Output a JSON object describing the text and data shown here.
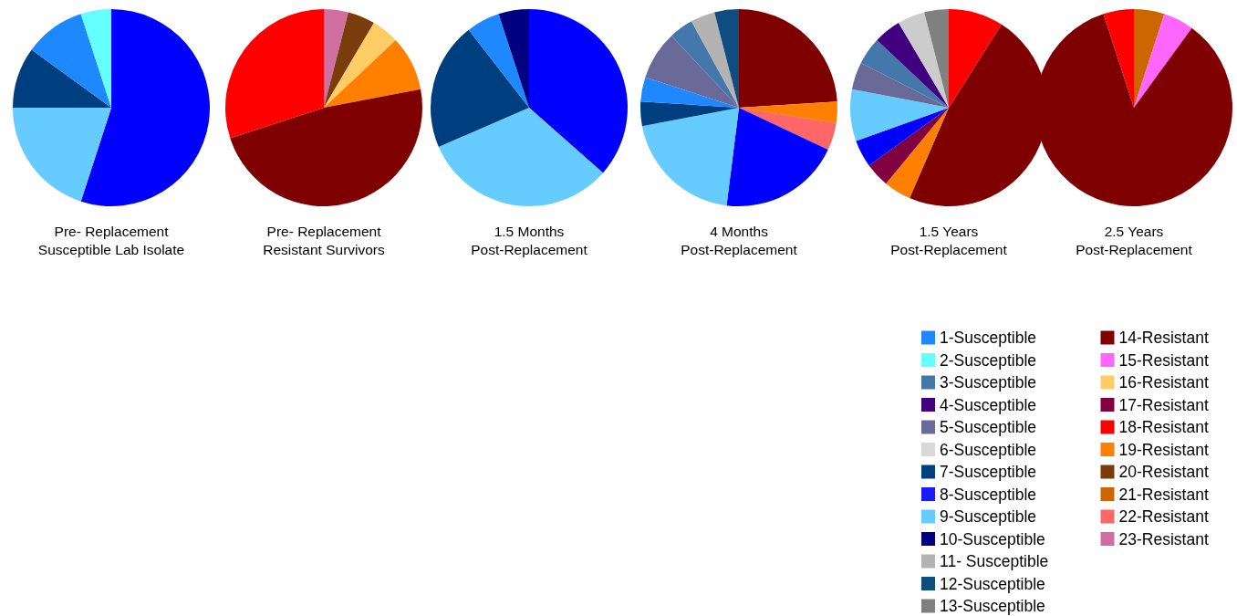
{
  "chart_data": [
    {
      "type": "pie",
      "title": "Pre- Replacement\nSusceptible Lab Isolate",
      "categories": [
        null,
        null,
        null,
        null,
        null
      ],
      "values": [
        55,
        20,
        10,
        10,
        5
      ],
      "colors": [
        "#0000ff",
        "#66ccff",
        "#003f7f",
        "#1e88ff",
        "#66ffff"
      ]
    },
    {
      "type": "pie",
      "title": "Pre- Replacement\nResistant Survivors",
      "categories": [
        null,
        null,
        null,
        null,
        null,
        null
      ],
      "values": [
        4,
        4.5,
        4.5,
        9,
        48,
        30
      ],
      "colors": [
        "#d070a0",
        "#7a3c0a",
        "#ffcc66",
        "#ff8000",
        "#7f0000",
        "#ff0000"
      ]
    },
    {
      "type": "pie",
      "title": "1.5 Months\nPost-Replacement",
      "categories": [
        null,
        null,
        null,
        null,
        null
      ],
      "values": [
        36.5,
        32,
        21,
        5.5,
        5
      ],
      "colors": [
        "#0000ff",
        "#66ccff",
        "#003f7f",
        "#1e88ff",
        "#000080"
      ]
    },
    {
      "type": "pie",
      "title": "4 Months\nPost-Replacement",
      "categories": [
        null,
        null,
        null,
        null,
        null,
        null,
        null,
        null,
        null,
        null,
        null
      ],
      "values": [
        24,
        3.5,
        4.5,
        20,
        20,
        4,
        4,
        8,
        4,
        4,
        4
      ],
      "colors": [
        "#7f0000",
        "#ff8000",
        "#ff6666",
        "#0000ff",
        "#66ccff",
        "#003f7f",
        "#1e88ff",
        "#6a6a99",
        "#4477aa",
        "#b3b3b3",
        "#0f4c80"
      ]
    },
    {
      "type": "pie",
      "title": "1.5 Years\nPost-Replacement",
      "categories": [
        null,
        null,
        null,
        null,
        null,
        null,
        null,
        null,
        null,
        null,
        null
      ],
      "values": [
        9,
        47.5,
        4.5,
        4,
        4.5,
        8.5,
        4.5,
        4.5,
        4.5,
        4.5,
        4
      ],
      "colors": [
        "#ff0000",
        "#7f0000",
        "#ff8000",
        "#800040",
        "#0000ff",
        "#66ccff",
        "#6a6a99",
        "#4477aa",
        "#400080",
        "#cccccc",
        "#808080"
      ]
    },
    {
      "type": "pie",
      "title": "2.5 Years\nPost-Replacement",
      "categories": [
        null,
        null,
        null,
        null
      ],
      "values": [
        5,
        5,
        85,
        5
      ],
      "colors": [
        "#cc6600",
        "#ff66ff",
        "#7f0000",
        "#ff0000"
      ]
    },
    {
      "type": "other",
      "categories": [
        "1-Susceptible",
        "2-Susceptible",
        "3-Susceptible",
        "4-Susceptible",
        "5-Susceptible",
        "6-Susceptible",
        "7-Susceptible",
        "8-Susceptible",
        "9-Susceptible",
        "10-Susceptible",
        "11- Susceptible",
        "12-Susceptible",
        "13-Susceptible",
        "14-Resistant",
        "15-Resistant",
        "16-Resistant",
        "17-Resistant",
        "18-Resistant",
        "19-Resistant",
        "20-Resistant",
        "21-Resistant",
        "22-Resistant",
        "23-Resistant"
      ],
      "colors": [
        "#1e88ff",
        "#66ffff",
        "#4477aa",
        "#400080",
        "#6a6a99",
        "#d9d9d9",
        "#003f7f",
        "#1a1aff",
        "#66ccff",
        "#000080",
        "#b3b3b3",
        "#0f4c80",
        "#808080",
        "#7f0000",
        "#ff66ff",
        "#ffcc66",
        "#800040",
        "#ff0000",
        "#ff8000",
        "#7a3c0a",
        "#cc6600",
        "#ff6666",
        "#d070a0"
      ]
    }
  ]
}
